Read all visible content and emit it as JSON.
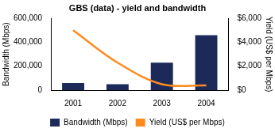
{
  "chart_data": {
    "type": "bar",
    "title": "GBS (data) - yield and bandwidth",
    "categories": [
      "2001",
      "2002",
      "2003",
      "2004"
    ],
    "y_label": "Bandwidth (Mbps)",
    "y2_label": "Yield (US$ per Mbps)",
    "series": [
      {
        "name": "Bandwidth (Mbps)",
        "type": "bar",
        "color": "#1c2a5a",
        "values": [
          60000,
          50000,
          230000,
          460000
        ]
      },
      {
        "name": "Yield (US$ per Mbps)",
        "type": "line",
        "color": "#ff8a1e",
        "axis": "y2",
        "values": [
          5000,
          2300,
          500,
          400
        ]
      }
    ],
    "ylim": [
      0,
      600000
    ],
    "yticks": [
      0,
      {
        "value": 200000,
        "label": "200,000"
      },
      {
        "value": 400000,
        "label": "400,000"
      },
      {
        "value": 600000,
        "label": "600,000"
      }
    ],
    "y2lim": [
      0,
      6000
    ],
    "y2ticks": [
      {
        "value": 0,
        "label": "$0"
      },
      {
        "value": 2000,
        "label": "$2,000"
      },
      {
        "value": 4000,
        "label": "$4,000"
      },
      {
        "value": 6000,
        "label": "$6,000"
      }
    ],
    "grid": false,
    "legend": "bottom"
  }
}
